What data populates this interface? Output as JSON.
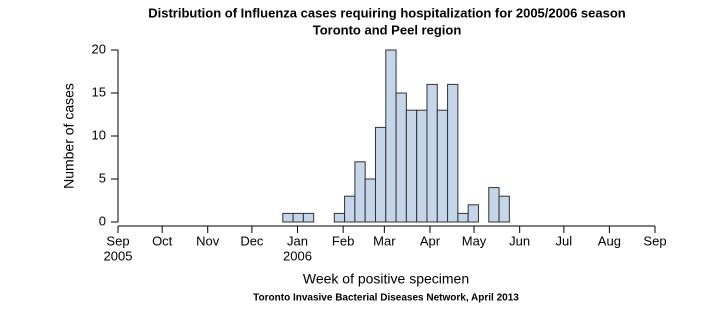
{
  "chart_data": {
    "type": "histogram",
    "title": "Distribution of Influenza cases requiring hospitalization for 2005/2006 season",
    "subtitle": "Toronto and Peel region",
    "xlabel": "Week of positive specimen",
    "ylabel": "Number of cases",
    "annotation": "Toronto Invasive Bacterial Diseases Network, April 2013",
    "bins": [
      16,
      17,
      18,
      19,
      20,
      21,
      22,
      23,
      24,
      25,
      26,
      27,
      28,
      29,
      30,
      31,
      32,
      33,
      34,
      35,
      36,
      37,
      38
    ],
    "values": [
      1,
      1,
      1,
      0,
      0,
      1,
      3,
      7,
      5,
      11,
      20,
      15,
      13,
      13,
      16,
      13,
      16,
      1,
      2,
      0,
      4,
      3
    ],
    "color": "#c5d5ea",
    "xlim": [
      0,
      52.14
    ],
    "xticks": [
      {
        "value": 0,
        "label": "Sep"
      },
      {
        "value": 4.29,
        "label": "Oct"
      },
      {
        "value": 8.71,
        "label": "Nov"
      },
      {
        "value": 13,
        "label": "Dec"
      },
      {
        "value": 17.43,
        "label": "Jan"
      },
      {
        "value": 21.86,
        "label": "Feb"
      },
      {
        "value": 25.86,
        "label": "Mar"
      },
      {
        "value": 30.29,
        "label": "Apr"
      },
      {
        "value": 34.57,
        "label": "May"
      },
      {
        "value": 39,
        "label": "Jun"
      },
      {
        "value": 43.29,
        "label": "Jul"
      },
      {
        "value": 47.71,
        "label": "Aug"
      },
      {
        "value": 52.14,
        "label": "Sep"
      }
    ],
    "year_labels": [
      {
        "value": 0,
        "label": "2005"
      },
      {
        "value": 17.43,
        "label": "2006"
      }
    ],
    "ylim": [
      0,
      20
    ],
    "yticks": [
      0,
      5,
      10,
      15,
      20
    ],
    "grid": false
  }
}
